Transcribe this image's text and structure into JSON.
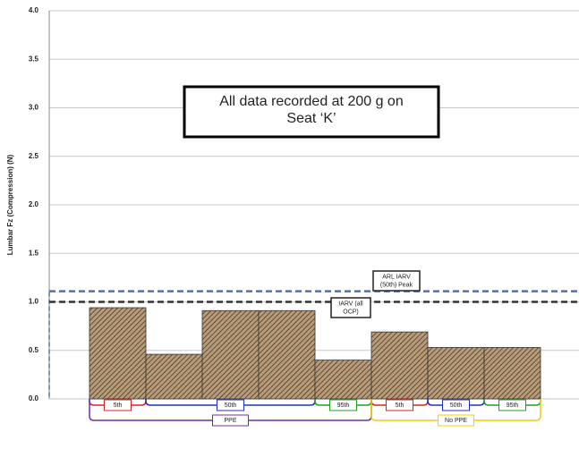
{
  "chart_data": {
    "type": "bar",
    "y_label": "Lumbar Fz (Compression) (N)",
    "annotation": [
      "All data recorded at 200 g on",
      "Seat ‘K’"
    ],
    "ylim": [
      0,
      4
    ],
    "yticks": [
      {
        "value": 0,
        "label": "0.0"
      },
      {
        "value": 0.5,
        "label": "0.5"
      },
      {
        "value": 1,
        "label": "1.0"
      },
      {
        "value": 1.5,
        "label": "1.5"
      },
      {
        "value": 2,
        "label": "2.0"
      },
      {
        "value": 2.5,
        "label": "2.5"
      },
      {
        "value": 3,
        "label": "3.0"
      },
      {
        "value": 3.5,
        "label": "3.5"
      },
      {
        "value": 4,
        "label": "4.0"
      }
    ],
    "grid": true,
    "color": "#a08464",
    "reference_lines": [
      {
        "label": [
          "ARL IARV",
          "(50th) Peak"
        ],
        "value": 1.11,
        "color": "#5a6fa8"
      },
      {
        "label": [
          "IARV (all",
          "OCP)"
        ],
        "value": 1.0,
        "color": "#333333"
      }
    ],
    "groups": [
      {
        "label": "PPE",
        "color": "#7030a0",
        "subgroups": [
          {
            "label": "5th",
            "color": "#e02020",
            "values": [
              0.94
            ]
          },
          {
            "label": "50th",
            "color": "#2030c0",
            "values": [
              0.46,
              0.91,
              0.91
            ]
          },
          {
            "label": "95th",
            "color": "#20a020",
            "values": [
              0.4
            ]
          }
        ]
      },
      {
        "label": "No PPE",
        "color": "#f0d000",
        "subgroups": [
          {
            "label": "5th",
            "color": "#e02020",
            "values": [
              0.69
            ]
          },
          {
            "label": "50th",
            "color": "#2030c0",
            "values": [
              0.53
            ]
          },
          {
            "label": "95th",
            "color": "#20a020",
            "values": [
              0.53
            ]
          }
        ]
      }
    ]
  }
}
